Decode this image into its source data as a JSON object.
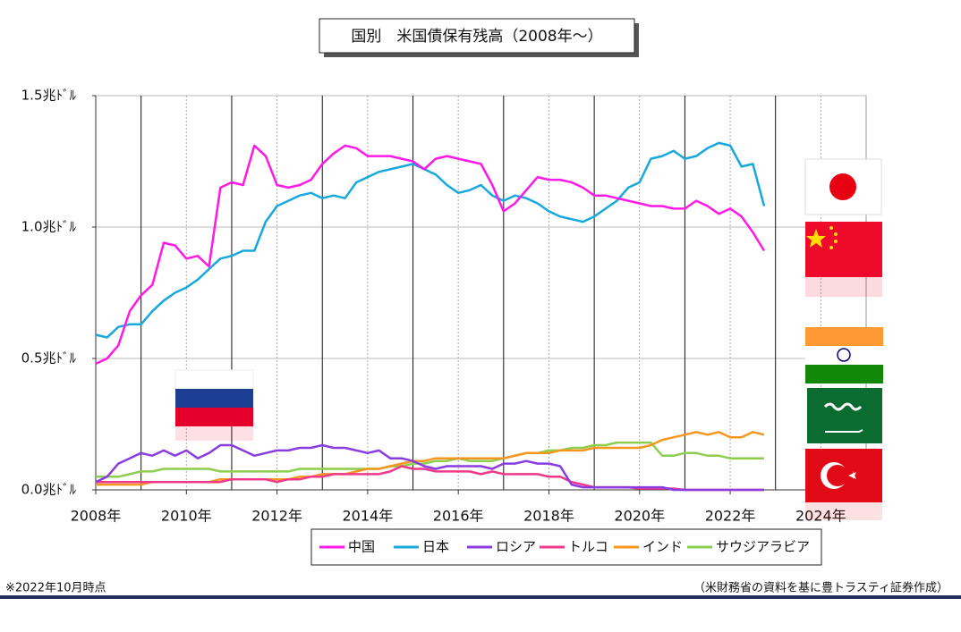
{
  "chart_data": {
    "type": "line",
    "title": "国別　米国債保有残高（2008年～）",
    "note": "※2022年10月時点",
    "source": "（米財務省の資料を基に豊トラスティ証券作成）",
    "xlim": [
      2008,
      2025
    ],
    "xticks": [
      {
        "value": 2008,
        "label": "2008年"
      },
      {
        "value": 2010,
        "label": "2010年"
      },
      {
        "value": 2012,
        "label": "2012年"
      },
      {
        "value": 2014,
        "label": "2014年"
      },
      {
        "value": 2016,
        "label": "2016年"
      },
      {
        "value": 2018,
        "label": "2018年"
      },
      {
        "value": 2020,
        "label": "2020年"
      },
      {
        "value": 2022,
        "label": "2022年"
      },
      {
        "value": 2024,
        "label": "2024年"
      }
    ],
    "xgrid": [
      2009,
      2011,
      2013,
      2015,
      2017,
      2019,
      2021,
      2023
    ],
    "ylim": [
      0,
      1.5
    ],
    "yticks": [
      {
        "value": 0,
        "label": "0.0兆ﾄﾞﾙ"
      },
      {
        "value": 0.5,
        "label": "0.5兆ﾄﾞﾙ"
      },
      {
        "value": 1.0,
        "label": "1.0兆ﾄﾞﾙ"
      },
      {
        "value": 1.5,
        "label": "1.5兆ﾄﾞﾙ"
      }
    ],
    "grid": true,
    "x": [
      2008,
      2008.25,
      2008.5,
      2008.75,
      2009,
      2009.25,
      2009.5,
      2009.75,
      2010,
      2010.25,
      2010.5,
      2010.75,
      2011,
      2011.25,
      2011.5,
      2011.75,
      2012,
      2012.25,
      2012.5,
      2012.75,
      2013,
      2013.25,
      2013.5,
      2013.75,
      2014,
      2014.25,
      2014.5,
      2014.75,
      2015,
      2015.25,
      2015.5,
      2015.75,
      2016,
      2016.25,
      2016.5,
      2016.75,
      2017,
      2017.25,
      2017.5,
      2017.75,
      2018,
      2018.25,
      2018.5,
      2018.75,
      2019,
      2019.25,
      2019.5,
      2019.75,
      2020,
      2020.25,
      2020.5,
      2020.75,
      2021,
      2021.25,
      2021.5,
      2021.75,
      2022,
      2022.25,
      2022.5,
      2022.75
    ],
    "series": [
      {
        "name": "中国",
        "color": "#ff19e6",
        "values": [
          0.48,
          0.5,
          0.55,
          0.68,
          0.74,
          0.78,
          0.94,
          0.93,
          0.88,
          0.89,
          0.85,
          1.15,
          1.17,
          1.16,
          1.31,
          1.27,
          1.16,
          1.15,
          1.16,
          1.18,
          1.24,
          1.28,
          1.31,
          1.3,
          1.27,
          1.27,
          1.27,
          1.26,
          1.25,
          1.22,
          1.26,
          1.27,
          1.26,
          1.25,
          1.24,
          1.16,
          1.06,
          1.09,
          1.14,
          1.19,
          1.18,
          1.18,
          1.17,
          1.15,
          1.12,
          1.12,
          1.11,
          1.1,
          1.09,
          1.08,
          1.08,
          1.07,
          1.07,
          1.1,
          1.08,
          1.05,
          1.07,
          1.04,
          0.98,
          0.91
        ]
      },
      {
        "name": "日本",
        "color": "#17a8de",
        "values": [
          0.59,
          0.58,
          0.62,
          0.63,
          0.63,
          0.68,
          0.72,
          0.75,
          0.77,
          0.8,
          0.84,
          0.88,
          0.89,
          0.91,
          0.91,
          1.02,
          1.08,
          1.1,
          1.12,
          1.13,
          1.11,
          1.12,
          1.11,
          1.17,
          1.19,
          1.21,
          1.22,
          1.23,
          1.24,
          1.22,
          1.2,
          1.16,
          1.13,
          1.14,
          1.16,
          1.12,
          1.1,
          1.12,
          1.11,
          1.09,
          1.06,
          1.04,
          1.03,
          1.02,
          1.04,
          1.07,
          1.1,
          1.15,
          1.17,
          1.26,
          1.27,
          1.29,
          1.26,
          1.27,
          1.3,
          1.32,
          1.31,
          1.23,
          1.24,
          1.08
        ]
      },
      {
        "name": "ロシア",
        "color": "#8a3ce0",
        "values": [
          0.03,
          0.05,
          0.1,
          0.12,
          0.14,
          0.13,
          0.15,
          0.13,
          0.15,
          0.12,
          0.14,
          0.17,
          0.17,
          0.15,
          0.13,
          0.14,
          0.15,
          0.15,
          0.16,
          0.16,
          0.17,
          0.16,
          0.16,
          0.15,
          0.14,
          0.15,
          0.12,
          0.12,
          0.11,
          0.09,
          0.08,
          0.09,
          0.09,
          0.09,
          0.09,
          0.08,
          0.1,
          0.1,
          0.11,
          0.1,
          0.1,
          0.09,
          0.02,
          0.01,
          0.01,
          0.01,
          0.01,
          0.01,
          0.01,
          0.01,
          0.01,
          0,
          0,
          0,
          0,
          0,
          0,
          0,
          0,
          0
        ]
      },
      {
        "name": "トルコ",
        "color": "#f0388a",
        "values": [
          0.03,
          0.03,
          0.03,
          0.03,
          0.03,
          0.03,
          0.03,
          0.03,
          0.03,
          0.03,
          0.03,
          0.03,
          0.04,
          0.04,
          0.04,
          0.04,
          0.03,
          0.04,
          0.04,
          0.05,
          0.05,
          0.06,
          0.06,
          0.06,
          0.06,
          0.06,
          0.07,
          0.09,
          0.08,
          0.08,
          0.07,
          0.07,
          0.07,
          0.07,
          0.06,
          0.07,
          0.06,
          0.06,
          0.06,
          0.06,
          0.05,
          0.05,
          0.03,
          0.02,
          0.01,
          0.01,
          0.01,
          0.01,
          0.005,
          0.005,
          0.005,
          0.005,
          0,
          0,
          0,
          0,
          0,
          0,
          0,
          0
        ]
      },
      {
        "name": "インド",
        "color": "#f5961e",
        "values": [
          0.02,
          0.02,
          0.02,
          0.02,
          0.02,
          0.03,
          0.03,
          0.03,
          0.03,
          0.03,
          0.03,
          0.04,
          0.04,
          0.04,
          0.04,
          0.04,
          0.04,
          0.04,
          0.05,
          0.05,
          0.06,
          0.06,
          0.06,
          0.07,
          0.08,
          0.08,
          0.09,
          0.1,
          0.11,
          0.11,
          0.12,
          0.12,
          0.12,
          0.12,
          0.12,
          0.12,
          0.12,
          0.13,
          0.14,
          0.14,
          0.14,
          0.15,
          0.15,
          0.15,
          0.16,
          0.16,
          0.16,
          0.16,
          0.16,
          0.17,
          0.19,
          0.2,
          0.21,
          0.22,
          0.21,
          0.22,
          0.2,
          0.2,
          0.22,
          0.21
        ]
      },
      {
        "name": "サウジアラビア",
        "color": "#8cce50",
        "values": [
          0.05,
          0.05,
          0.05,
          0.06,
          0.07,
          0.07,
          0.08,
          0.08,
          0.08,
          0.08,
          0.08,
          0.07,
          0.07,
          0.07,
          0.07,
          0.07,
          0.07,
          0.07,
          0.08,
          0.08,
          0.08,
          0.08,
          0.08,
          0.08,
          0.08,
          0.08,
          0.09,
          0.09,
          0.1,
          0.1,
          0.11,
          0.11,
          0.12,
          0.11,
          0.11,
          0.11,
          0.12,
          0.13,
          0.14,
          0.14,
          0.15,
          0.15,
          0.16,
          0.16,
          0.17,
          0.17,
          0.18,
          0.18,
          0.18,
          0.18,
          0.13,
          0.13,
          0.14,
          0.14,
          0.13,
          0.13,
          0.12,
          0.12,
          0.12,
          0.12
        ]
      }
    ]
  }
}
